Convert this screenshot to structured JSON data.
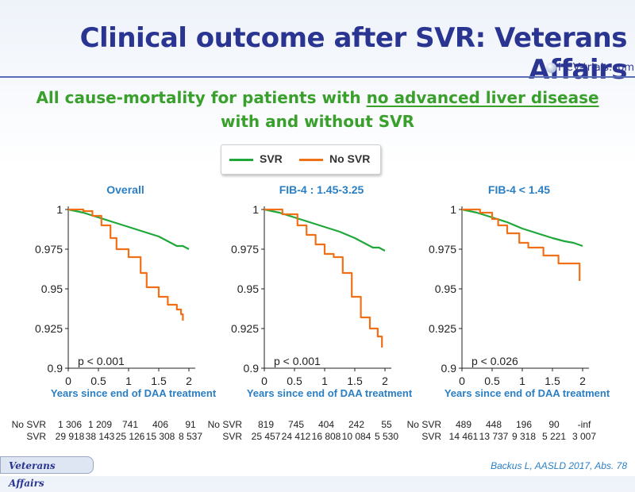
{
  "header": {
    "title": "Clinical outcome after SVR: Veterans Affairs",
    "logo_text": "HCV-trials.com"
  },
  "subtitle": {
    "line1_prefix": "All cause-mortality for patients with ",
    "line1_underlined": "no advanced liver disease ",
    "line2": "with and without SVR"
  },
  "legend": {
    "svr": "SVR",
    "no_svr": "No SVR"
  },
  "colors": {
    "svr": "#1fa83a",
    "no_svr": "#f07018",
    "title": "#2a3592",
    "panel_title": "#2a7fc4"
  },
  "chart_data": [
    {
      "type": "line",
      "title": "Overall",
      "xlabel": "Years since end of DAA treatment",
      "ylabel": "",
      "xlim": [
        0,
        2
      ],
      "ylim": [
        0.9,
        1
      ],
      "xticks": [
        "0",
        "0.5",
        "1",
        "1.5",
        "2"
      ],
      "yticks": [
        "1",
        "0.975",
        "0.95",
        "0.925",
        "0.9"
      ],
      "annotation": "p < 0.001",
      "series": [
        {
          "name": "SVR",
          "x": [
            0,
            0.25,
            0.5,
            0.75,
            1.0,
            1.25,
            1.5,
            1.7,
            1.8,
            1.9,
            2.0
          ],
          "y": [
            1,
            0.998,
            0.995,
            0.992,
            0.989,
            0.986,
            0.983,
            0.979,
            0.977,
            0.977,
            0.975
          ]
        },
        {
          "name": "No SVR",
          "x": [
            0,
            0.25,
            0.4,
            0.55,
            0.7,
            0.8,
            1.0,
            1.2,
            1.3,
            1.5,
            1.65,
            1.8,
            1.87,
            1.9
          ],
          "y": [
            1,
            0.999,
            0.996,
            0.99,
            0.982,
            0.975,
            0.97,
            0.96,
            0.951,
            0.945,
            0.94,
            0.937,
            0.934,
            0.93
          ]
        }
      ],
      "risk_table": {
        "no_svr_label": "No SVR",
        "svr_label": "SVR",
        "no_svr": [
          "1 306",
          "1 209",
          "741",
          "406",
          "91"
        ],
        "svr": [
          "29 918",
          "38 143",
          "25 126",
          "15 308",
          "8 537"
        ]
      }
    },
    {
      "type": "line",
      "title": "FIB-4 : 1.45-3.25",
      "xlabel": "Years since end of DAA treatment",
      "ylabel": "",
      "xlim": [
        0,
        2
      ],
      "ylim": [
        0.9,
        1
      ],
      "xticks": [
        "0",
        "0.5",
        "1",
        "1.5",
        "2"
      ],
      "yticks": [
        "1",
        "0.975",
        "0.95",
        "0.925",
        "0.9"
      ],
      "annotation": "p < 0.001",
      "series": [
        {
          "name": "SVR",
          "x": [
            0,
            0.25,
            0.5,
            0.75,
            1.0,
            1.25,
            1.5,
            1.7,
            1.8,
            1.9,
            2.0
          ],
          "y": [
            1,
            0.998,
            0.995,
            0.992,
            0.989,
            0.986,
            0.982,
            0.978,
            0.976,
            0.976,
            0.974
          ]
        },
        {
          "name": "No SVR",
          "x": [
            0,
            0.3,
            0.55,
            0.7,
            0.85,
            1.0,
            1.15,
            1.3,
            1.45,
            1.6,
            1.75,
            1.88,
            1.95
          ],
          "y": [
            1,
            0.997,
            0.99,
            0.984,
            0.978,
            0.972,
            0.97,
            0.96,
            0.945,
            0.932,
            0.925,
            0.92,
            0.913
          ]
        }
      ],
      "risk_table": {
        "no_svr_label": "No SVR",
        "svr_label": "SVR",
        "no_svr": [
          "819",
          "745",
          "404",
          "242",
          "55"
        ],
        "svr": [
          "25 457",
          "24 412",
          "16 808",
          "10 084",
          "5 530"
        ]
      }
    },
    {
      "type": "line",
      "title": "FIB-4 < 1.45",
      "xlabel": "Years since end of DAA treatment",
      "ylabel": "",
      "xlim": [
        0,
        2
      ],
      "ylim": [
        0.9,
        1
      ],
      "xticks": [
        "0",
        "0.5",
        "1",
        "1.5",
        "2"
      ],
      "yticks": [
        "1",
        "0.975",
        "0.95",
        "0.925",
        "0.9"
      ],
      "annotation": "p < 0.026",
      "series": [
        {
          "name": "SVR",
          "x": [
            0,
            0.25,
            0.5,
            0.75,
            1.0,
            1.25,
            1.5,
            1.7,
            1.85,
            2.0
          ],
          "y": [
            1,
            0.998,
            0.995,
            0.992,
            0.988,
            0.985,
            0.982,
            0.98,
            0.979,
            0.977
          ]
        },
        {
          "name": "No SVR",
          "x": [
            0,
            0.3,
            0.5,
            0.6,
            0.75,
            0.95,
            1.1,
            1.35,
            1.6,
            1.9,
            1.95
          ],
          "y": [
            1,
            0.998,
            0.994,
            0.99,
            0.985,
            0.979,
            0.976,
            0.971,
            0.966,
            0.966,
            0.955
          ]
        }
      ],
      "risk_table": {
        "no_svr_label": "No SVR",
        "svr_label": "SVR",
        "no_svr": [
          "489",
          "448",
          "196",
          "90",
          "-inf"
        ],
        "svr": [
          "14 461",
          "13 737",
          "9 318",
          "5 221",
          "3 007"
        ]
      }
    }
  ],
  "footer": {
    "badge": "Veterans Affairs",
    "reference": "Backus L, AASLD 2017, Abs. 78"
  }
}
